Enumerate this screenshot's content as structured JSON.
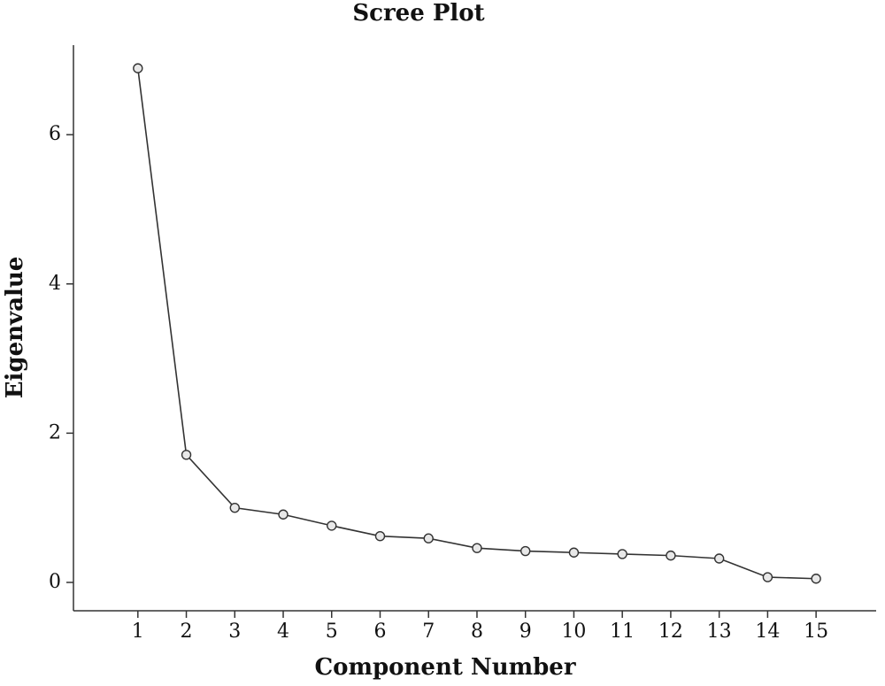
{
  "chart_data": {
    "type": "line",
    "title": "Scree Plot",
    "x_label": "Component Number",
    "y_label": "Eigenvalue",
    "x": [
      1,
      2,
      3,
      4,
      5,
      6,
      7,
      8,
      9,
      10,
      11,
      12,
      13,
      14,
      15
    ],
    "series": [
      {
        "color": "#333333",
        "values": [
          6.89,
          1.71,
          1.0,
          0.91,
          0.76,
          0.62,
          0.59,
          0.46,
          0.42,
          0.4,
          0.38,
          0.36,
          0.32,
          0.07,
          0.05
        ]
      }
    ],
    "xlim": [
      -0.33,
      16.24
    ],
    "xticks": [
      1,
      2,
      3,
      4,
      5,
      6,
      7,
      8,
      9,
      10,
      11,
      12,
      13,
      14,
      15
    ],
    "ylim": [
      -0.38,
      7.2
    ],
    "yticks": [
      0,
      2,
      4,
      6
    ],
    "grid": false
  }
}
